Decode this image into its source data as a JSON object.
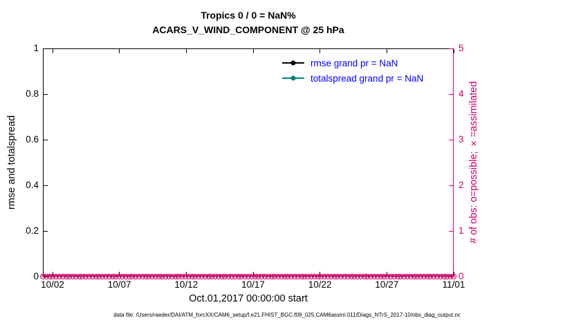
{
  "figure": {
    "title_line1": "Tropics 0 / 0 = NaN%",
    "title_line2": "ACARS_V_WIND_COMPONENT @ 25 hPa",
    "footer": "data file: /Users/raeder/DAI/ATM_forcXX/CAM6_setup/f.e21.FHIST_BGC.f09_025.CAM6assim.011/Diags_NTrS_2017-10/obs_diag_output.nc"
  },
  "left_axis": {
    "label": "rmse and totalspread",
    "ticks": [
      "0",
      "0.2",
      "0.4",
      "0.6",
      "0.8",
      "1"
    ],
    "range": [
      0,
      1
    ],
    "color": "#000000"
  },
  "right_axis": {
    "label": "# of obs: o=possible; ×=assimilated",
    "ticks": [
      "0",
      "1",
      "2",
      "3",
      "4",
      "5"
    ],
    "range": [
      0,
      5
    ],
    "color": "#CC0066"
  },
  "x_axis": {
    "ticks": [
      "10/02",
      "10/07",
      "10/12",
      "10/17",
      "10/22",
      "10/27",
      "11/01"
    ],
    "label": "Oct.01,2017 00:00:00 start"
  },
  "legend": {
    "text_color": "#0000FF",
    "entries": [
      {
        "label": "rmse grand pr = NaN",
        "color": "#000000"
      },
      {
        "label": "totalspread grand pr = NaN",
        "color": "#008080"
      }
    ]
  },
  "chart_data": {
    "type": "line",
    "title": "Tropics 0 / 0 = NaN% — ACARS_V_WIND_COMPONENT @ 25 hPa",
    "xlabel": "Oct.01,2017 00:00:00 start",
    "ylabel_left": "rmse and totalspread",
    "ylabel_right": "# of obs: o=possible; ×=assimilated",
    "x_ticks": [
      "10/02",
      "10/07",
      "10/12",
      "10/17",
      "10/22",
      "10/27",
      "11/01"
    ],
    "x_range": [
      "2017-10-01 00:00",
      "2017-11-01 00:00"
    ],
    "ylim_left": [
      0,
      1
    ],
    "ylim_right": [
      0,
      5
    ],
    "grid": false,
    "legend_position": "upper right, no box",
    "n_times": 125,
    "cadence": "6-hourly",
    "series": [
      {
        "name": "rmse",
        "axis": "left",
        "color": "#000000",
        "marker": "filled-circle",
        "values": "all NaN (no line drawn)",
        "grand_mean": "NaN"
      },
      {
        "name": "totalspread",
        "axis": "left",
        "color": "#008080",
        "marker": "filled-circle",
        "values": "all NaN (no line drawn)",
        "grand_mean": "NaN"
      },
      {
        "name": "obs possible (o)",
        "axis": "right",
        "color": "#CC0066",
        "marker": "open-circle",
        "constant_value": 0,
        "n_points": 125
      },
      {
        "name": "obs assimilated (×)",
        "axis": "right",
        "color": "#CC0066",
        "marker": "x",
        "constant_value": 0,
        "n_points": 125
      }
    ]
  }
}
